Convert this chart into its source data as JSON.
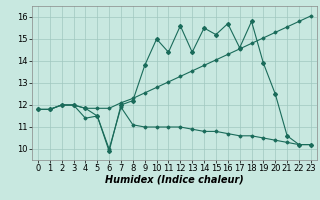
{
  "title": "",
  "xlabel": "Humidex (Indice chaleur)",
  "bg_color": "#c8e8e0",
  "grid_color": "#a0c8c0",
  "line_color": "#1a6b5a",
  "xlim": [
    -0.5,
    23.5
  ],
  "ylim": [
    9.5,
    16.5
  ],
  "xticks": [
    0,
    1,
    2,
    3,
    4,
    5,
    6,
    7,
    8,
    9,
    10,
    11,
    12,
    13,
    14,
    15,
    16,
    17,
    18,
    19,
    20,
    21,
    22,
    23
  ],
  "yticks": [
    10,
    11,
    12,
    13,
    14,
    15,
    16
  ],
  "line1_y": [
    11.8,
    11.8,
    12.0,
    12.0,
    11.4,
    11.5,
    10.0,
    11.9,
    11.1,
    11.0,
    11.0,
    11.0,
    11.0,
    10.9,
    10.8,
    10.8,
    10.7,
    10.6,
    10.6,
    10.5,
    10.4,
    10.3,
    10.2,
    10.2
  ],
  "line2_y": [
    11.8,
    11.8,
    12.0,
    12.0,
    11.85,
    11.85,
    11.85,
    12.1,
    12.3,
    12.55,
    12.8,
    13.05,
    13.3,
    13.55,
    13.8,
    14.05,
    14.3,
    14.55,
    14.8,
    15.05,
    15.3,
    15.55,
    15.8,
    16.05
  ],
  "line3_y": [
    11.8,
    11.8,
    12.0,
    12.0,
    11.85,
    11.5,
    9.9,
    12.0,
    12.2,
    13.8,
    15.0,
    14.4,
    15.6,
    14.4,
    15.5,
    15.2,
    15.7,
    14.6,
    15.8,
    13.9,
    12.5,
    10.6,
    10.2,
    10.2
  ],
  "xlabel_fontsize": 7,
  "tick_fontsize": 6
}
